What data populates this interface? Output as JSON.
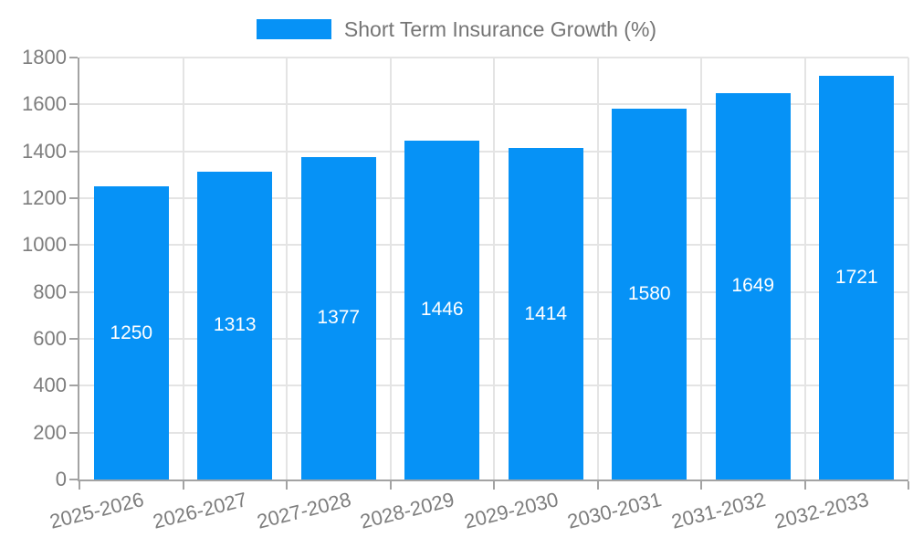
{
  "chart_data": {
    "type": "bar",
    "title": "Short Term Insurance Growth (%)",
    "categories": [
      "2025-2026",
      "2026-2027",
      "2027-2028",
      "2028-2029",
      "2029-2030",
      "2030-2031",
      "2031-2032",
      "2032-2033"
    ],
    "values": [
      1250,
      1313,
      1377,
      1446,
      1414,
      1580,
      1649,
      1721
    ],
    "bar_value_labels": [
      "1250",
      "1313",
      "1377",
      "1446",
      "1414",
      "1580",
      "1649",
      "1721"
    ],
    "xlabel": "",
    "ylabel": "",
    "ylim": [
      0,
      1800
    ],
    "y_ticks": [
      0,
      200,
      400,
      600,
      800,
      1000,
      1200,
      1400,
      1600,
      1800
    ],
    "grid": true,
    "legend_position": "top-center"
  },
  "legend": {
    "label": "Short Term Insurance Growth (%)"
  },
  "style": {
    "bar_color": "#0692F6",
    "grid_color": "#e4e4e4",
    "axis_color": "#a3a3a3",
    "tick_color": "#a3a3a3",
    "tick_label_color": "#7d7d7d",
    "legend_text_color": "#757575",
    "bar_label_color": "#ffffff",
    "background_color": "#ffffff"
  }
}
